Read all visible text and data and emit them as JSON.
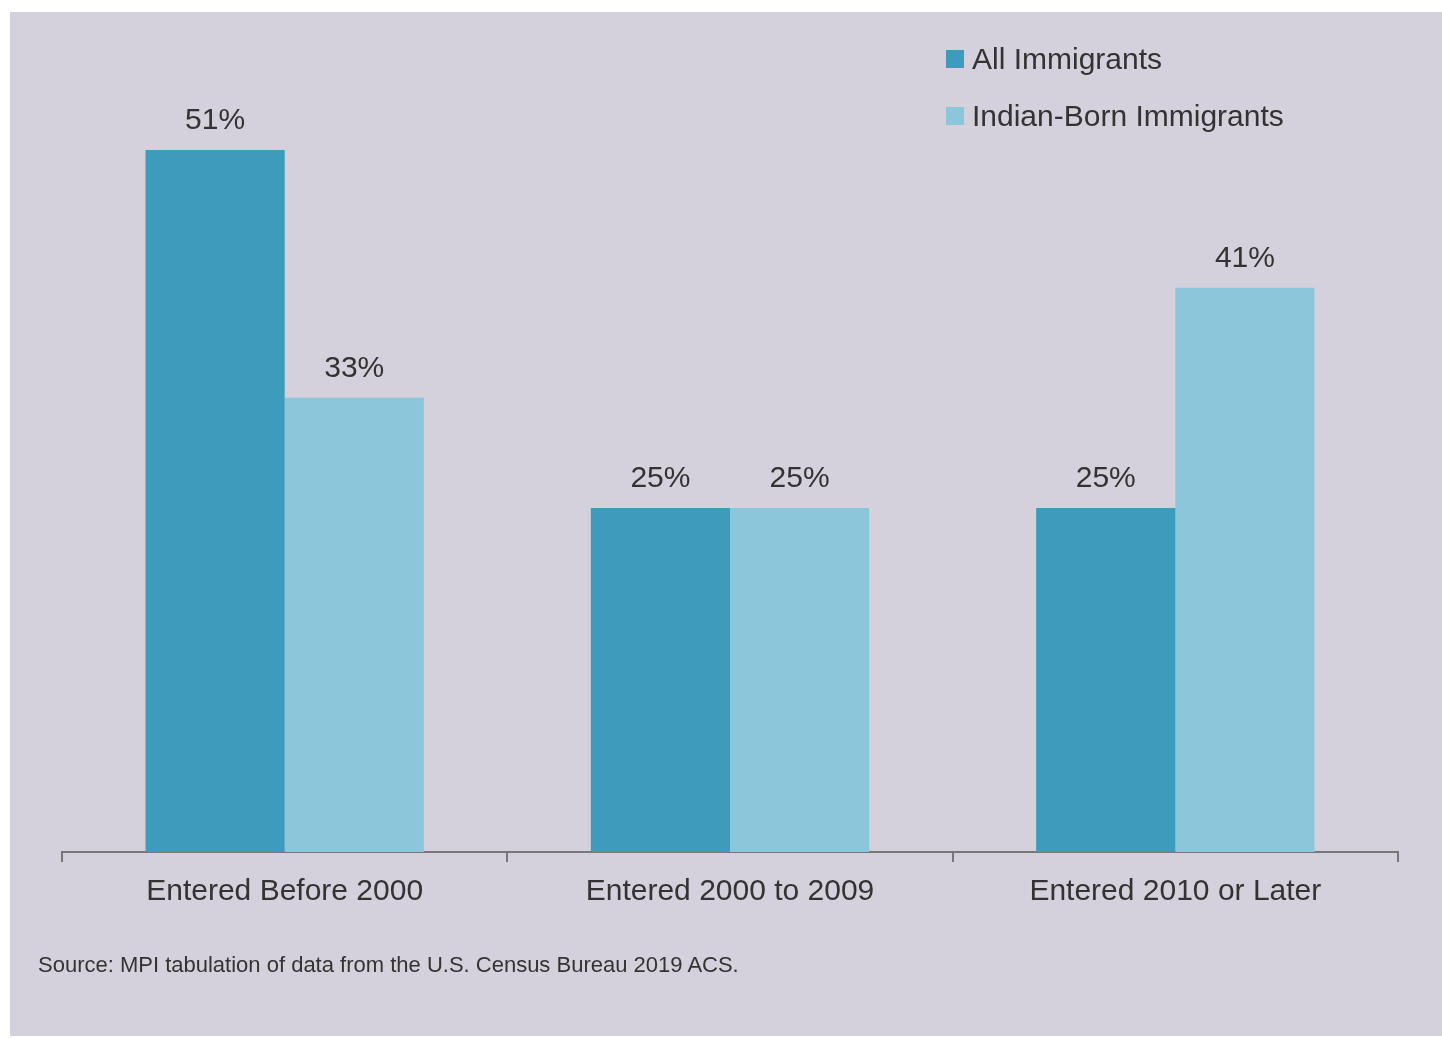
{
  "chart_data": {
    "type": "bar",
    "categories": [
      "Entered Before 2000",
      "Entered 2000 to 2009",
      "Entered 2010 or Later"
    ],
    "series": [
      {
        "name": "All Immigrants",
        "color": "#3d9bbb",
        "values": [
          51,
          25,
          25
        ],
        "value_labels": [
          "51%",
          "25%",
          "25%"
        ]
      },
      {
        "name": "Indian-Born Immigrants",
        "color": "#8cc6da",
        "values": [
          33,
          25,
          41
        ],
        "value_labels": [
          "33%",
          "25%",
          "41%"
        ]
      }
    ],
    "legend": "top right",
    "grid": false,
    "tick_labels": "x",
    "annotations": [
      "Source: MPI tabulation of data from the U.S. Census Bureau 2019 ACS."
    ]
  }
}
